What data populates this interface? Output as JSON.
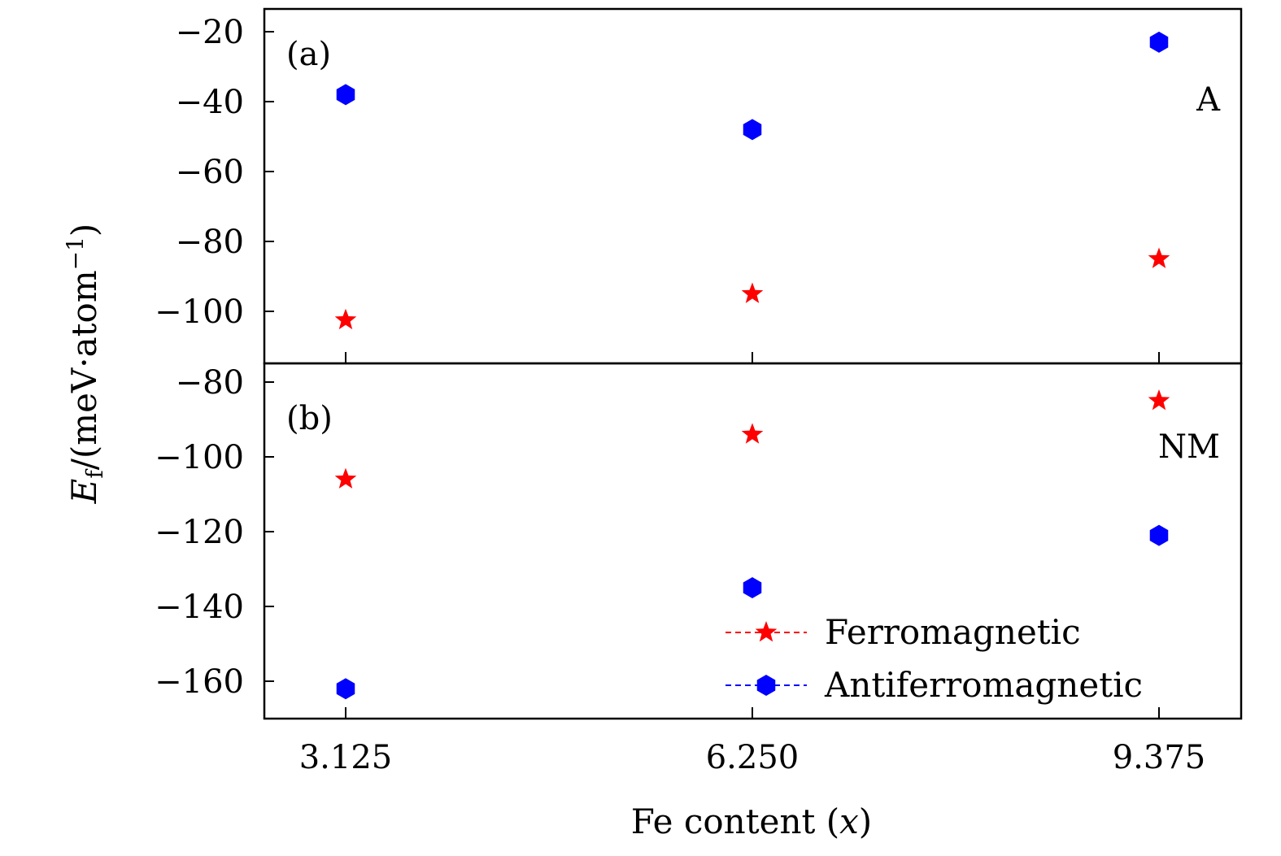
{
  "chart_data": [
    {
      "panel": "(a)",
      "type": "scatter",
      "annotation": "A",
      "x_categories": [
        "3.125",
        "6.250",
        "9.375"
      ],
      "ylim": [
        -115,
        -15
      ],
      "yticks": [
        -20,
        -40,
        -60,
        -80,
        -100
      ],
      "ytick_labels": [
        "−20",
        "−40",
        "−60",
        "−80",
        "−100"
      ],
      "series": [
        {
          "name": "Ferromagnetic",
          "marker": "star",
          "color": "#ff0000",
          "values": [
            -102.5,
            -95,
            -85
          ]
        },
        {
          "name": "Antiferromagnetic",
          "marker": "hexagon",
          "color": "#0000ff",
          "values": [
            -38,
            -48,
            -23
          ]
        }
      ]
    },
    {
      "panel": "(b)",
      "type": "scatter",
      "annotation": "NM",
      "x_categories": [
        "3.125",
        "6.250",
        "9.375"
      ],
      "ylim": [
        -170,
        -75
      ],
      "yticks": [
        -80,
        -100,
        -120,
        -140,
        -160
      ],
      "ytick_labels": [
        "−80",
        "−100",
        "−120",
        "−140",
        "−160"
      ],
      "series": [
        {
          "name": "Ferromagnetic",
          "marker": "star",
          "color": "#ff0000",
          "values": [
            -106,
            -94,
            -85
          ]
        },
        {
          "name": "Antiferromagnetic",
          "marker": "hexagon",
          "color": "#0000ff",
          "values": [
            -162,
            -135,
            -121
          ]
        }
      ]
    }
  ],
  "axes": {
    "xlabel_text": "Fe content (",
    "xlabel_var": "x",
    "xlabel_close": ")",
    "ylabel_main": "E",
    "ylabel_sub": "f",
    "ylabel_unit": "/(meV·atom",
    "ylabel_exp": "−1",
    "ylabel_close": ")"
  },
  "legend": {
    "position": "lower-right",
    "items": [
      {
        "label": "Ferromagnetic",
        "marker": "star",
        "color": "#ff0000",
        "line": "dashed"
      },
      {
        "label": "Antiferromagnetic",
        "marker": "hexagon",
        "color": "#0000ff",
        "line": "dashed"
      }
    ]
  }
}
